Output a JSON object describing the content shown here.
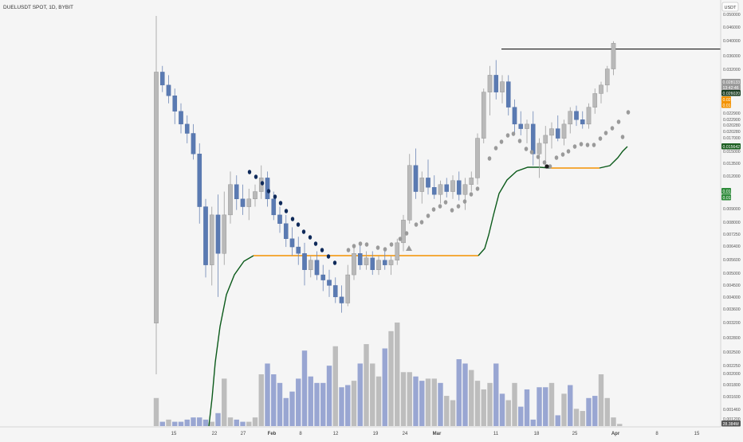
{
  "header": {
    "symbol_label": "DUELUSDT SPOT, 1D, BYBIT"
  },
  "currency_button": "USDT",
  "colors": {
    "background": "#f5f5f5",
    "up": "#b9b9b9",
    "up_border": "#8c8c8c",
    "down": "#5a7ab2",
    "volume_up": "#bdbdbd",
    "volume_down": "#99a6d2",
    "dots_dark": "#0f2a5a",
    "dots_light": "#9a9a9a",
    "line_green": "#0b5a1a",
    "line_orange": "#f39200",
    "hline": "#1b1b1b"
  },
  "price_axis": {
    "ticks": [
      "0.050000",
      "0.046000",
      "0.040000",
      "0.036000",
      "0.032000",
      "0.022900",
      "0.022900",
      "0.020280",
      "0.020280",
      "0.017000",
      "0.015000",
      "0.013500",
      "0.012000",
      "0.009000",
      "0.008000",
      "0.007250",
      "0.006400",
      "0.005600",
      "0.005000",
      "0.004500",
      "0.004000",
      "0.003600",
      "0.003200",
      "0.002800",
      "0.002500",
      "0.002250",
      "0.002000",
      "0.001800",
      "0.001600",
      "0.001460",
      "0.001200"
    ],
    "badges": [
      {
        "text": "0.028133",
        "bg": "#9a9a9a",
        "fg": "#ffffff"
      },
      {
        "text": "13:42:46",
        "bg": "#9a9a9a",
        "fg": "#ffffff"
      },
      {
        "text": "0.026020",
        "bg": "#1b3d22",
        "fg": "#ffffff"
      },
      {
        "text": "0.025",
        "bg": "#f39200",
        "fg": "#ffffff"
      },
      {
        "text": "0.01",
        "bg": "#f39200",
        "fg": "#ffffff"
      },
      {
        "text": "0.015642",
        "bg": "#1b5e20",
        "fg": "#ffffff"
      },
      {
        "text": "0.01",
        "bg": "#2e8b3a",
        "fg": "#ffffff"
      },
      {
        "text": "0.01",
        "bg": "#2e8b3a",
        "fg": "#ffffff"
      },
      {
        "text": "28.384M",
        "bg": "#555555",
        "fg": "#ffffff"
      }
    ]
  },
  "time_axis": {
    "labels": [
      {
        "text": "15",
        "bold": false
      },
      {
        "text": "22",
        "bold": false
      },
      {
        "text": "27",
        "bold": false
      },
      {
        "text": "Feb",
        "bold": true
      },
      {
        "text": "8",
        "bold": false
      },
      {
        "text": "12",
        "bold": false
      },
      {
        "text": "19",
        "bold": false
      },
      {
        "text": "24",
        "bold": false
      },
      {
        "text": "Mar",
        "bold": true
      },
      {
        "text": "11",
        "bold": false
      },
      {
        "text": "18",
        "bold": false
      },
      {
        "text": "25",
        "bold": false
      },
      {
        "text": "Apr",
        "bold": true
      },
      {
        "text": "8",
        "bold": false
      },
      {
        "text": "15",
        "bold": false
      }
    ]
  },
  "chart_data": {
    "type": "candlestick",
    "symbol": "DUELUSDT SPOT, 1D, BYBIT",
    "quote_currency": "USDT",
    "candles": [
      {
        "open": 0.004,
        "high": 0.038,
        "low": 0.0025,
        "close": 0.023
      },
      {
        "open": 0.023,
        "high": 0.024,
        "low": 0.02,
        "close": 0.021
      },
      {
        "open": 0.021,
        "high": 0.0225,
        "low": 0.0185,
        "close": 0.0195
      },
      {
        "open": 0.0195,
        "high": 0.0205,
        "low": 0.016,
        "close": 0.0175
      },
      {
        "open": 0.0175,
        "high": 0.0185,
        "low": 0.015,
        "close": 0.016
      },
      {
        "open": 0.016,
        "high": 0.017,
        "low": 0.014,
        "close": 0.015
      },
      {
        "open": 0.015,
        "high": 0.016,
        "low": 0.0125,
        "close": 0.013
      },
      {
        "open": 0.013,
        "high": 0.014,
        "low": 0.008,
        "close": 0.009
      },
      {
        "open": 0.009,
        "high": 0.0095,
        "low": 0.0055,
        "close": 0.006
      },
      {
        "open": 0.006,
        "high": 0.009,
        "low": 0.0052,
        "close": 0.0085
      },
      {
        "open": 0.0085,
        "high": 0.0098,
        "low": 0.0048,
        "close": 0.0065
      },
      {
        "open": 0.0065,
        "high": 0.01,
        "low": 0.006,
        "close": 0.0085
      },
      {
        "open": 0.0085,
        "high": 0.0115,
        "low": 0.008,
        "close": 0.0105
      },
      {
        "open": 0.0105,
        "high": 0.0112,
        "low": 0.0088,
        "close": 0.0095
      },
      {
        "open": 0.0095,
        "high": 0.0105,
        "low": 0.0085,
        "close": 0.009
      },
      {
        "open": 0.009,
        "high": 0.0102,
        "low": 0.0082,
        "close": 0.0095
      },
      {
        "open": 0.0095,
        "high": 0.0105,
        "low": 0.009,
        "close": 0.01
      },
      {
        "open": 0.01,
        "high": 0.012,
        "low": 0.0095,
        "close": 0.011
      },
      {
        "open": 0.011,
        "high": 0.0115,
        "low": 0.009,
        "close": 0.0095
      },
      {
        "open": 0.0095,
        "high": 0.01,
        "low": 0.0082,
        "close": 0.0085
      },
      {
        "open": 0.0085,
        "high": 0.009,
        "low": 0.0075,
        "close": 0.008
      },
      {
        "open": 0.008,
        "high": 0.0085,
        "low": 0.0068,
        "close": 0.0072
      },
      {
        "open": 0.0072,
        "high": 0.0078,
        "low": 0.0064,
        "close": 0.0068
      },
      {
        "open": 0.0068,
        "high": 0.0073,
        "low": 0.006,
        "close": 0.0065
      },
      {
        "open": 0.0065,
        "high": 0.007,
        "low": 0.0052,
        "close": 0.0058
      },
      {
        "open": 0.0058,
        "high": 0.0064,
        "low": 0.0055,
        "close": 0.0062
      },
      {
        "open": 0.0062,
        "high": 0.0066,
        "low": 0.0054,
        "close": 0.0056
      },
      {
        "open": 0.0056,
        "high": 0.006,
        "low": 0.005,
        "close": 0.0054
      },
      {
        "open": 0.0054,
        "high": 0.0058,
        "low": 0.0048,
        "close": 0.0052
      },
      {
        "open": 0.0052,
        "high": 0.0055,
        "low": 0.0046,
        "close": 0.0048
      },
      {
        "open": 0.0048,
        "high": 0.0052,
        "low": 0.0043,
        "close": 0.0046
      },
      {
        "open": 0.0046,
        "high": 0.006,
        "low": 0.0045,
        "close": 0.0056
      },
      {
        "open": 0.0056,
        "high": 0.0068,
        "low": 0.0054,
        "close": 0.0065
      },
      {
        "open": 0.0065,
        "high": 0.007,
        "low": 0.0058,
        "close": 0.006
      },
      {
        "open": 0.006,
        "high": 0.0066,
        "low": 0.0058,
        "close": 0.0063
      },
      {
        "open": 0.0063,
        "high": 0.0066,
        "low": 0.0056,
        "close": 0.0058
      },
      {
        "open": 0.0058,
        "high": 0.0064,
        "low": 0.0056,
        "close": 0.0062
      },
      {
        "open": 0.0062,
        "high": 0.0066,
        "low": 0.0058,
        "close": 0.006
      },
      {
        "open": 0.006,
        "high": 0.0064,
        "low": 0.0056,
        "close": 0.0062
      },
      {
        "open": 0.0062,
        "high": 0.0072,
        "low": 0.006,
        "close": 0.007
      },
      {
        "open": 0.007,
        "high": 0.0085,
        "low": 0.0066,
        "close": 0.0082
      },
      {
        "open": 0.0082,
        "high": 0.013,
        "low": 0.008,
        "close": 0.012
      },
      {
        "open": 0.012,
        "high": 0.0135,
        "low": 0.0095,
        "close": 0.01
      },
      {
        "open": 0.01,
        "high": 0.0115,
        "low": 0.0092,
        "close": 0.011
      },
      {
        "open": 0.011,
        "high": 0.0125,
        "low": 0.0098,
        "close": 0.0103
      },
      {
        "open": 0.0103,
        "high": 0.0112,
        "low": 0.0095,
        "close": 0.0098
      },
      {
        "open": 0.0098,
        "high": 0.0108,
        "low": 0.0092,
        "close": 0.0105
      },
      {
        "open": 0.0105,
        "high": 0.011,
        "low": 0.0096,
        "close": 0.01
      },
      {
        "open": 0.01,
        "high": 0.0112,
        "low": 0.0095,
        "close": 0.0108
      },
      {
        "open": 0.0108,
        "high": 0.0115,
        "low": 0.0094,
        "close": 0.0098
      },
      {
        "open": 0.0098,
        "high": 0.011,
        "low": 0.0088,
        "close": 0.0105
      },
      {
        "open": 0.0105,
        "high": 0.0115,
        "low": 0.01,
        "close": 0.011
      },
      {
        "open": 0.011,
        "high": 0.015,
        "low": 0.0105,
        "close": 0.0145
      },
      {
        "open": 0.0145,
        "high": 0.0205,
        "low": 0.014,
        "close": 0.02
      },
      {
        "open": 0.02,
        "high": 0.024,
        "low": 0.017,
        "close": 0.0225
      },
      {
        "open": 0.0225,
        "high": 0.025,
        "low": 0.019,
        "close": 0.02
      },
      {
        "open": 0.02,
        "high": 0.0225,
        "low": 0.0185,
        "close": 0.0215
      },
      {
        "open": 0.0215,
        "high": 0.0225,
        "low": 0.017,
        "close": 0.018
      },
      {
        "open": 0.018,
        "high": 0.019,
        "low": 0.015,
        "close": 0.016
      },
      {
        "open": 0.016,
        "high": 0.0175,
        "low": 0.0148,
        "close": 0.0155
      },
      {
        "open": 0.0155,
        "high": 0.0165,
        "low": 0.014,
        "close": 0.016
      },
      {
        "open": 0.016,
        "high": 0.0175,
        "low": 0.012,
        "close": 0.013
      },
      {
        "open": 0.013,
        "high": 0.0145,
        "low": 0.011,
        "close": 0.014
      },
      {
        "open": 0.014,
        "high": 0.0158,
        "low": 0.012,
        "close": 0.0148
      },
      {
        "open": 0.0148,
        "high": 0.0162,
        "low": 0.0135,
        "close": 0.0155
      },
      {
        "open": 0.0155,
        "high": 0.017,
        "low": 0.0142,
        "close": 0.0145
      },
      {
        "open": 0.0145,
        "high": 0.0165,
        "low": 0.0138,
        "close": 0.016
      },
      {
        "open": 0.016,
        "high": 0.018,
        "low": 0.015,
        "close": 0.0175
      },
      {
        "open": 0.0175,
        "high": 0.0182,
        "low": 0.0158,
        "close": 0.0165
      },
      {
        "open": 0.0165,
        "high": 0.0175,
        "low": 0.0155,
        "close": 0.016
      },
      {
        "open": 0.016,
        "high": 0.0185,
        "low": 0.0155,
        "close": 0.018
      },
      {
        "open": 0.018,
        "high": 0.0205,
        "low": 0.0172,
        "close": 0.0198
      },
      {
        "open": 0.0198,
        "high": 0.0215,
        "low": 0.0185,
        "close": 0.021
      },
      {
        "open": 0.021,
        "high": 0.024,
        "low": 0.02,
        "close": 0.0235
      },
      {
        "open": 0.0235,
        "high": 0.0285,
        "low": 0.0225,
        "close": 0.0281
      }
    ],
    "volume": [
      {
        "value": 13,
        "dir": "up"
      },
      {
        "value": 2,
        "dir": "down"
      },
      {
        "value": 3,
        "dir": "up"
      },
      {
        "value": 2,
        "dir": "down"
      },
      {
        "value": 2,
        "dir": "down"
      },
      {
        "value": 3,
        "dir": "down"
      },
      {
        "value": 4,
        "dir": "down"
      },
      {
        "value": 4,
        "dir": "down"
      },
      {
        "value": 3,
        "dir": "down"
      },
      {
        "value": 2,
        "dir": "up"
      },
      {
        "value": 6,
        "dir": "down"
      },
      {
        "value": 22,
        "dir": "up"
      },
      {
        "value": 4,
        "dir": "up"
      },
      {
        "value": 3,
        "dir": "down"
      },
      {
        "value": 2,
        "dir": "down"
      },
      {
        "value": 2,
        "dir": "up"
      },
      {
        "value": 4,
        "dir": "up"
      },
      {
        "value": 24,
        "dir": "up"
      },
      {
        "value": 29,
        "dir": "down"
      },
      {
        "value": 24,
        "dir": "down"
      },
      {
        "value": 20,
        "dir": "down"
      },
      {
        "value": 13,
        "dir": "down"
      },
      {
        "value": 16,
        "dir": "down"
      },
      {
        "value": 22,
        "dir": "down"
      },
      {
        "value": 35,
        "dir": "down"
      },
      {
        "value": 23,
        "dir": "down"
      },
      {
        "value": 20,
        "dir": "down"
      },
      {
        "value": 20,
        "dir": "down"
      },
      {
        "value": 28,
        "dir": "down"
      },
      {
        "value": 37,
        "dir": "up"
      },
      {
        "value": 18,
        "dir": "down"
      },
      {
        "value": 19,
        "dir": "down"
      },
      {
        "value": 21,
        "dir": "up"
      },
      {
        "value": 29,
        "dir": "down"
      },
      {
        "value": 38,
        "dir": "up"
      },
      {
        "value": 29,
        "dir": "up"
      },
      {
        "value": 23,
        "dir": "up"
      },
      {
        "value": 36,
        "dir": "down"
      },
      {
        "value": 44,
        "dir": "up"
      },
      {
        "value": 48,
        "dir": "up"
      },
      {
        "value": 25,
        "dir": "up"
      },
      {
        "value": 25,
        "dir": "up"
      },
      {
        "value": 23,
        "dir": "down"
      },
      {
        "value": 21,
        "dir": "down"
      },
      {
        "value": 22,
        "dir": "up"
      },
      {
        "value": 22,
        "dir": "up"
      },
      {
        "value": 20,
        "dir": "down"
      },
      {
        "value": 14,
        "dir": "up"
      },
      {
        "value": 12,
        "dir": "up"
      },
      {
        "value": 31,
        "dir": "down"
      },
      {
        "value": 29,
        "dir": "down"
      },
      {
        "value": 26,
        "dir": "up"
      },
      {
        "value": 21,
        "dir": "up"
      },
      {
        "value": 17,
        "dir": "up"
      },
      {
        "value": 20,
        "dir": "up"
      },
      {
        "value": 29,
        "dir": "down"
      },
      {
        "value": 15,
        "dir": "down"
      },
      {
        "value": 12,
        "dir": "up"
      },
      {
        "value": 20,
        "dir": "up"
      },
      {
        "value": 9,
        "dir": "down"
      },
      {
        "value": 17,
        "dir": "down"
      },
      {
        "value": 3,
        "dir": "down"
      },
      {
        "value": 18,
        "dir": "down"
      },
      {
        "value": 18,
        "dir": "down"
      },
      {
        "value": 20,
        "dir": "up"
      },
      {
        "value": 5,
        "dir": "down"
      },
      {
        "value": 15,
        "dir": "up"
      },
      {
        "value": 19,
        "dir": "down"
      },
      {
        "value": 8,
        "dir": "up"
      },
      {
        "value": 7,
        "dir": "up"
      },
      {
        "value": 13,
        "dir": "down"
      },
      {
        "value": 14,
        "dir": "down"
      },
      {
        "value": 24,
        "dir": "up"
      },
      {
        "value": 13,
        "dir": "up"
      },
      {
        "value": 4,
        "dir": "up"
      },
      {
        "value": 1,
        "dir": "up"
      }
    ],
    "horizontal_line_price": 0.027
  }
}
